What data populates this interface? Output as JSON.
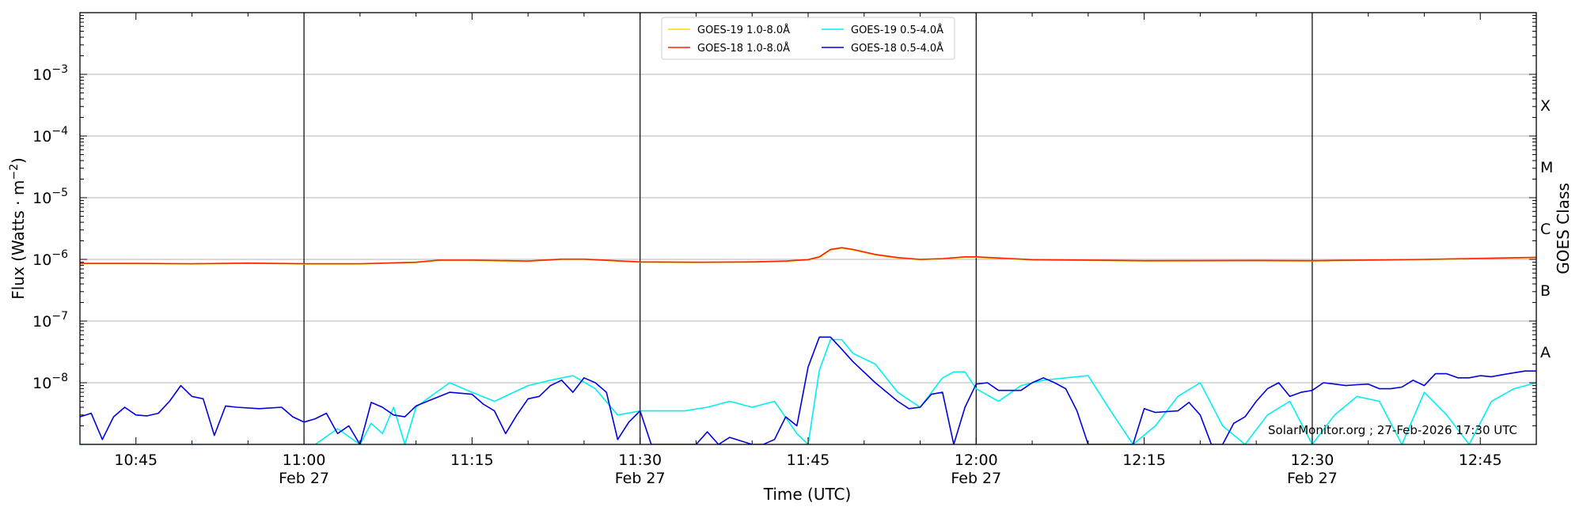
{
  "chart_data": {
    "type": "line",
    "xlabel": "Time (UTC)",
    "ylabel_left": "Flux (Watts · m⁻²)",
    "ylabel_right": "GOES Class",
    "xlim": [
      "10:40",
      "12:50"
    ],
    "ylim": [
      "1e-9",
      "1e-2"
    ],
    "y_scale": "log",
    "grid": "horizontal at each decade",
    "legend_position": "top-center",
    "x_ticks": [
      {
        "time": "10:45",
        "label": "10:45",
        "sub": ""
      },
      {
        "time": "11:00",
        "label": "11:00",
        "sub": "Feb 27"
      },
      {
        "time": "11:15",
        "label": "11:15",
        "sub": ""
      },
      {
        "time": "11:30",
        "label": "11:30",
        "sub": "Feb 27"
      },
      {
        "time": "11:45",
        "label": "11:45",
        "sub": ""
      },
      {
        "time": "12:00",
        "label": "12:00",
        "sub": "Feb 27"
      },
      {
        "time": "12:15",
        "label": "12:15",
        "sub": ""
      },
      {
        "time": "12:30",
        "label": "12:30",
        "sub": "Feb 27"
      },
      {
        "time": "12:45",
        "label": "12:45",
        "sub": ""
      }
    ],
    "day_separators": [
      "11:00",
      "11:30",
      "12:00",
      "12:30"
    ],
    "y_ticks": [
      {
        "exp": -8,
        "label": "10",
        "sup": "−8"
      },
      {
        "exp": -7,
        "label": "10",
        "sup": "−7"
      },
      {
        "exp": -6,
        "label": "10",
        "sup": "−6"
      },
      {
        "exp": -5,
        "label": "10",
        "sup": "−5"
      },
      {
        "exp": -4,
        "label": "10",
        "sup": "−4"
      },
      {
        "exp": -3,
        "label": "10",
        "sup": "−3"
      }
    ],
    "goes_classes": [
      {
        "label": "A",
        "exp": -7.5
      },
      {
        "label": "B",
        "exp": -6.5
      },
      {
        "label": "C",
        "exp": -5.5
      },
      {
        "label": "M",
        "exp": -4.5
      },
      {
        "label": "X",
        "exp": -3.5
      }
    ],
    "annotation": "SolarMonitor.org ; 27-Feb-2026 17:30 UTC",
    "series": [
      {
        "name": "GOES-19 1.0-8.0Å",
        "color": "#ffd700",
        "x": [
          "10:40",
          "10:45",
          "10:50",
          "10:55",
          "11:00",
          "11:05",
          "11:10",
          "11:12",
          "11:15",
          "11:20",
          "11:23",
          "11:25",
          "11:30",
          "11:35",
          "11:40",
          "11:43",
          "11:45",
          "11:46",
          "11:47",
          "11:48",
          "11:49",
          "11:51",
          "11:53",
          "11:55",
          "11:57",
          "11:59",
          "12:00",
          "12:05",
          "12:15",
          "12:25",
          "12:30",
          "12:40",
          "12:50"
        ],
        "y": [
          "8.5e-7",
          "8.5e-7",
          "8.4e-7",
          "8.6e-7",
          "8.4e-7",
          "8.4e-7",
          "8.9e-7",
          "9.6e-7",
          "9.6e-7",
          "9.3e-7",
          "1.0e-6",
          "1.0e-6",
          "9.0e-7",
          "8.9e-7",
          "9.0e-7",
          "9.3e-7",
          "9.8e-7",
          "1.08e-6",
          "1.42e-6",
          "1.52e-6",
          "1.42e-6",
          "1.18e-6",
          "1.05e-6",
          "9.9e-7",
          "1.02e-6",
          "1.08e-6",
          "1.08e-6",
          "9.8e-7",
          "9.4e-7",
          "9.5e-7",
          "9.4e-7",
          "9.9e-7",
          "1.07e-6"
        ]
      },
      {
        "name": "GOES-18 1.0-8.0Å",
        "color": "#ff2200",
        "x": [
          "10:40",
          "10:45",
          "10:50",
          "10:55",
          "11:00",
          "11:05",
          "11:10",
          "11:12",
          "11:15",
          "11:20",
          "11:23",
          "11:25",
          "11:30",
          "11:35",
          "11:40",
          "11:43",
          "11:45",
          "11:46",
          "11:47",
          "11:48",
          "11:49",
          "11:51",
          "11:53",
          "11:55",
          "11:57",
          "11:59",
          "12:00",
          "12:05",
          "12:15",
          "12:25",
          "12:30",
          "12:40",
          "12:50"
        ],
        "y": [
          "8.6e-7",
          "8.6e-7",
          "8.5e-7",
          "8.7e-7",
          "8.5e-7",
          "8.5e-7",
          "9.0e-7",
          "9.7e-7",
          "9.7e-7",
          "9.4e-7",
          "1.01e-6",
          "1.01e-6",
          "9.1e-7",
          "9.0e-7",
          "9.1e-7",
          "9.4e-7",
          "9.9e-7",
          "1.1e-6",
          "1.45e-6",
          "1.55e-6",
          "1.45e-6",
          "1.2e-6",
          "1.07e-6",
          "1.0e-6",
          "1.03e-6",
          "1.1e-6",
          "1.1e-6",
          "9.9e-7",
          "9.5e-7",
          "9.6e-7",
          "9.5e-7",
          "1.0e-6",
          "1.08e-6"
        ]
      },
      {
        "name": "GOES-19 0.5-4.0Å",
        "color": "#00f0f0",
        "x": [
          "10:40",
          "10:50",
          "11:01",
          "11:03",
          "11:05",
          "11:06",
          "11:07",
          "11:08",
          "11:09",
          "11:10",
          "11:11",
          "11:13",
          "11:15",
          "11:17",
          "11:20",
          "11:22",
          "11:24",
          "11:26",
          "11:28",
          "11:30",
          "11:32",
          "11:34",
          "11:36",
          "11:38",
          "11:40",
          "11:42",
          "11:44",
          "11:45",
          "11:46",
          "11:47",
          "11:48",
          "11:49",
          "11:51",
          "11:53",
          "11:55",
          "11:57",
          "11:58",
          "11:59",
          "12:00",
          "12:02",
          "12:04",
          "12:06",
          "12:08",
          "12:10",
          "12:12",
          "12:14",
          "12:16",
          "12:18",
          "12:20",
          "12:22",
          "12:24",
          "12:26",
          "12:28",
          "12:30",
          "12:32",
          "12:34",
          "12:36",
          "12:38",
          "12:40",
          "12:42",
          "12:44",
          "12:46",
          "12:48",
          "12:50"
        ],
        "y": [
          "1.0e-9",
          "1.0e-9",
          "1.0e-9",
          "1.8e-9",
          "1.0e-9",
          "2.2e-9",
          "1.5e-9",
          "4.0e-9",
          "1.0e-9",
          "4.0e-9",
          "5.5e-9",
          "1.0e-8",
          "7.0e-9",
          "5.0e-9",
          "9.0e-9",
          "1.1e-8",
          "1.3e-8",
          "8.0e-9",
          "3.0e-9",
          "3.5e-9",
          "3.5e-9",
          "3.5e-9",
          "4.0e-9",
          "5.0e-9",
          "4.0e-9",
          "5.0e-9",
          "1.5e-9",
          "1.0e-9",
          "1.6e-8",
          "5.0e-8",
          "5.0e-8",
          "3.0e-8",
          "2.0e-8",
          "7.0e-9",
          "4.0e-9",
          "1.2e-8",
          "1.5e-8",
          "1.5e-8",
          "8.0e-9",
          "5.0e-9",
          "9.0e-9",
          "1.1e-8",
          "1.2e-8",
          "1.3e-8",
          "3.5e-9",
          "1.0e-9",
          "2.0e-9",
          "6.0e-9",
          "1.0e-8",
          "2.0e-9",
          "1.0e-9",
          "3.0e-9",
          "5.0e-9",
          "1.0e-9",
          "3.0e-9",
          "6.0e-9",
          "5.0e-9",
          "1.0e-9",
          "7.0e-9",
          "3.0e-9",
          "1.0e-9",
          "5.0e-9",
          "8.0e-9",
          "1.0e-8"
        ]
      },
      {
        "name": "GOES-18 0.5-4.0Å",
        "color": "#0000dd",
        "x": [
          "10:40",
          "10:41",
          "10:42",
          "10:43",
          "10:44",
          "10:45",
          "10:46",
          "10:47",
          "10:48",
          "10:49",
          "10:50",
          "10:51",
          "10:52",
          "10:53",
          "10:54",
          "10:56",
          "10:58",
          "10:59",
          "11:00",
          "11:01",
          "11:02",
          "11:03",
          "11:04",
          "11:05",
          "11:06",
          "11:07",
          "11:08",
          "11:09",
          "11:10",
          "11:11",
          "11:13",
          "11:15",
          "11:16",
          "11:17",
          "11:18",
          "11:19",
          "11:20",
          "11:21",
          "11:22",
          "11:23",
          "11:24",
          "11:25",
          "11:26",
          "11:27",
          "11:28",
          "11:29",
          "11:30",
          "11:31",
          "11:35",
          "11:36",
          "11:37",
          "11:38",
          "11:40",
          "11:41",
          "11:42",
          "11:43",
          "11:44",
          "11:45",
          "11:46",
          "11:47",
          "11:48",
          "11:49",
          "11:51",
          "11:53",
          "11:54",
          "11:55",
          "11:56",
          "11:57",
          "11:58",
          "11:59",
          "12:00",
          "12:01",
          "12:02",
          "12:03",
          "12:04",
          "12:05",
          "12:06",
          "12:07",
          "12:08",
          "12:09",
          "12:10",
          "12:12",
          "12:13",
          "12:14",
          "12:15",
          "12:16",
          "12:17",
          "12:18",
          "12:19",
          "12:20",
          "12:21",
          "12:22",
          "12:23",
          "12:24",
          "12:25",
          "12:26",
          "12:27",
          "12:28",
          "12:29",
          "12:30",
          "12:31",
          "12:32",
          "12:33",
          "12:34",
          "12:35",
          "12:36",
          "12:37",
          "12:38",
          "12:39",
          "12:40",
          "12:41",
          "12:42",
          "12:43",
          "12:44",
          "12:45",
          "12:46",
          "12:47",
          "12:48",
          "12:49",
          "12:50"
        ],
        "y": [
          "2.8e-9",
          "3.2e-9",
          "1.2e-9",
          "2.8e-9",
          "4.0e-9",
          "3.0e-9",
          "2.9e-9",
          "3.2e-9",
          "5.0e-9",
          "9.0e-9",
          "6.0e-9",
          "5.5e-9",
          "1.4e-9",
          "4.2e-9",
          "4.0e-9",
          "3.8e-9",
          "4.0e-9",
          "2.8e-9",
          "2.3e-9",
          "2.6e-9",
          "3.2e-9",
          "1.5e-9",
          "2.0e-9",
          "1.0e-9",
          "4.8e-9",
          "4.0e-9",
          "3.0e-9",
          "2.8e-9",
          "4.2e-9",
          "5.0e-9",
          "7.0e-9",
          "6.5e-9",
          "4.5e-9",
          "3.5e-9",
          "1.5e-9",
          "3.0e-9",
          "5.5e-9",
          "6.0e-9",
          "9.0e-9",
          "1.1e-8",
          "7.0e-9",
          "1.2e-8",
          "1.0e-8",
          "7.0e-9",
          "1.2e-9",
          "2.3e-9",
          "3.5e-9",
          "1.0e-9",
          "1.0e-9",
          "1.6e-9",
          "1.0e-9",
          "1.3e-9",
          "1.0e-9",
          "1.0e-9",
          "1.2e-9",
          "2.8e-9",
          "2.0e-9",
          "1.8e-8",
          "5.5e-8",
          "5.5e-8",
          "3.5e-8",
          "2.2e-8",
          "1.0e-8",
          "5.0e-9",
          "3.8e-9",
          "4.0e-9",
          "6.5e-9",
          "7.0e-9",
          "1.0e-9",
          "4.0e-9",
          "9.5e-9",
          "1.0e-8",
          "7.5e-9",
          "7.5e-9",
          "7.5e-9",
          "1.0e-8",
          "1.2e-8",
          "1.0e-8",
          "8.0e-9",
          "3.5e-9",
          "1.0e-9",
          "1.0e-9",
          "1.0e-9",
          "1.0e-9",
          "3.8e-9",
          "3.3e-9",
          "3.4e-9",
          "3.5e-9",
          "4.8e-9",
          "3.0e-9",
          "1.0e-9",
          "1.0e-9",
          "2.2e-9",
          "2.8e-9",
          "5.0e-9",
          "8.0e-9",
          "1.0e-8",
          "6.0e-9",
          "7.0e-9",
          "7.5e-9",
          "1.0e-8",
          "9.5e-9",
          "9.0e-9",
          "9.3e-9",
          "9.5e-9",
          "8.0e-9",
          "8.0e-9",
          "8.5e-9",
          "1.1e-8",
          "9.0e-9",
          "1.4e-8",
          "1.4e-8",
          "1.2e-8",
          "1.2e-8",
          "1.3e-8",
          "1.25e-8",
          "1.35e-8",
          "1.45e-8",
          "1.55e-8",
          "1.55e-8"
        ]
      }
    ]
  }
}
